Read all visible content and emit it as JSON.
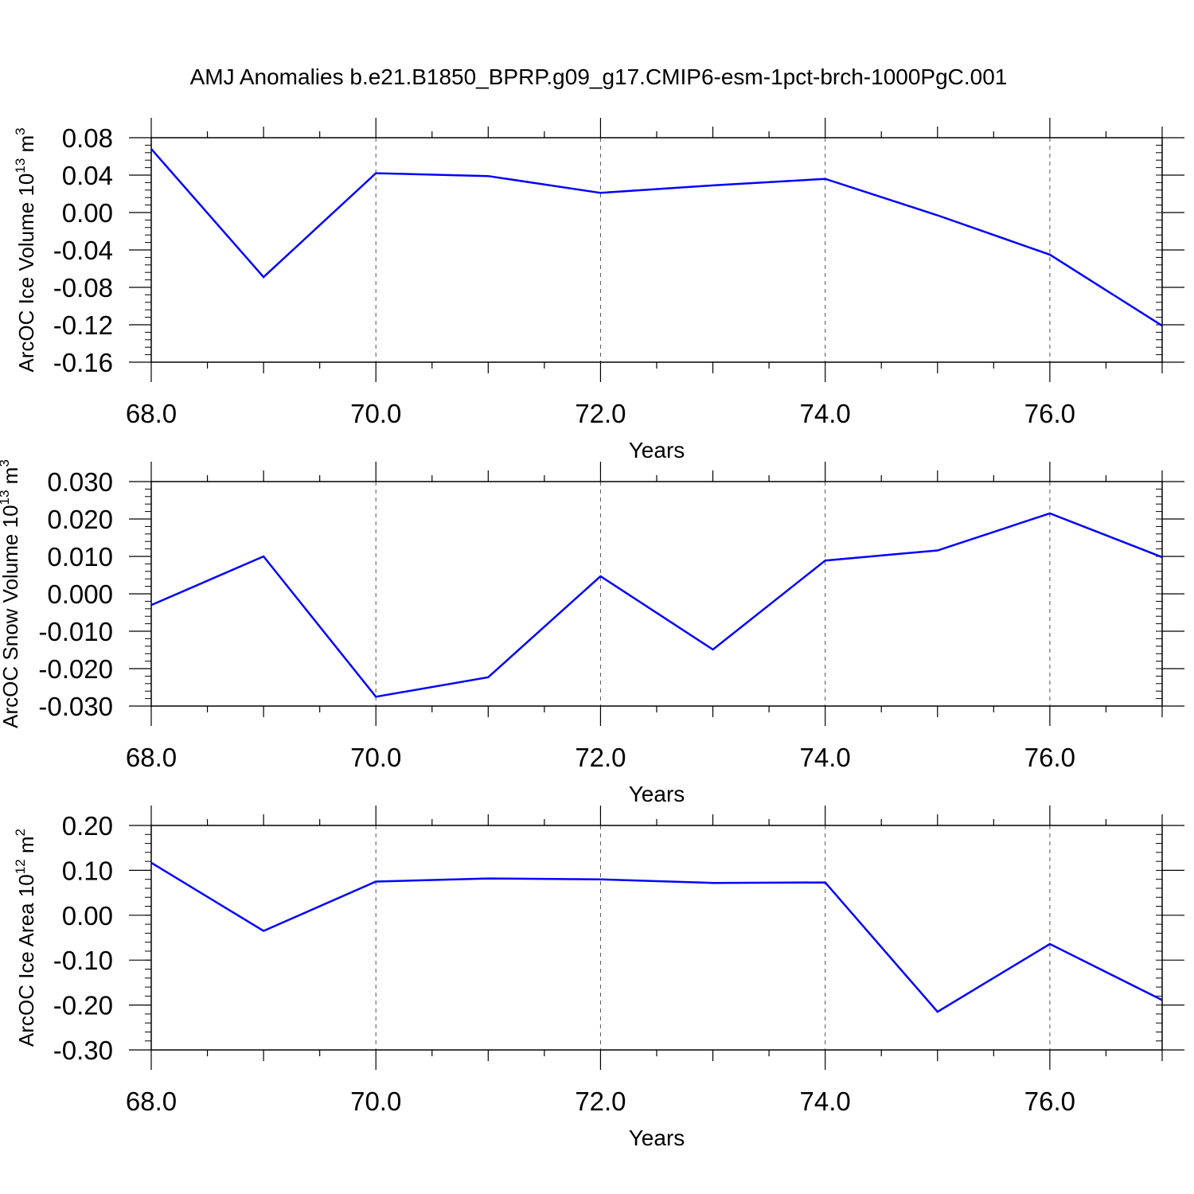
{
  "title": "AMJ Anomalies b.e21.B1850_BPRP.g09_g17.CMIP6-esm-1pct-brch-1000PgC.001",
  "line_color": "#0000ff",
  "chart_data": [
    {
      "type": "line",
      "xlabel": "Years",
      "ylabel": {
        "text": "ArcOC Ice Volume 10",
        "exp": "13",
        "unit": "m",
        "unit_exp": "3"
      },
      "xlim": [
        68,
        77
      ],
      "ylim": [
        -0.16,
        0.08
      ],
      "x_ticks": [
        68,
        70,
        72,
        74,
        76
      ],
      "x_tick_labels": [
        "68.0",
        "70.0",
        "72.0",
        "74.0",
        "76.0"
      ],
      "y_ticks": [
        -0.16,
        -0.12,
        -0.08,
        -0.04,
        0.0,
        0.04,
        0.08
      ],
      "y_tick_labels": [
        "-0.16",
        "-0.12",
        "-0.08",
        "-0.04",
        "0.00",
        "0.04",
        "0.08"
      ],
      "y_minor_step": 0.008,
      "x": [
        68,
        69,
        70,
        71,
        72,
        73,
        74,
        75,
        76,
        77
      ],
      "series": [
        {
          "values": [
            0.068,
            -0.069,
            0.042,
            0.039,
            0.021,
            0.029,
            0.036,
            -0.003,
            -0.045,
            -0.121
          ]
        }
      ]
    },
    {
      "type": "line",
      "xlabel": "Years",
      "ylabel": {
        "text": "ArcOC Snow Volume 10",
        "exp": "13",
        "unit": "m",
        "unit_exp": "3"
      },
      "xlim": [
        68,
        77
      ],
      "ylim": [
        -0.03,
        0.03
      ],
      "x_ticks": [
        68,
        70,
        72,
        74,
        76
      ],
      "x_tick_labels": [
        "68.0",
        "70.0",
        "72.0",
        "74.0",
        "76.0"
      ],
      "y_ticks": [
        -0.03,
        -0.02,
        -0.01,
        0.0,
        0.01,
        0.02,
        0.03
      ],
      "y_tick_labels": [
        "-0.030",
        "-0.020",
        "-0.010",
        "0.000",
        "0.010",
        "0.020",
        "0.030"
      ],
      "y_minor_step": 0.002,
      "x": [
        68,
        69,
        70,
        71,
        72,
        73,
        74,
        75,
        76,
        77
      ],
      "series": [
        {
          "values": [
            -0.003,
            0.01,
            -0.0275,
            -0.0223,
            0.0047,
            -0.0149,
            0.0089,
            0.0116,
            0.0215,
            0.0098
          ]
        }
      ]
    },
    {
      "type": "line",
      "xlabel": "Years",
      "ylabel": {
        "text": "ArcOC Ice Area 10",
        "exp": "12",
        "unit": "m",
        "unit_exp": "2"
      },
      "xlim": [
        68,
        77
      ],
      "ylim": [
        -0.3,
        0.2
      ],
      "x_ticks": [
        68,
        70,
        72,
        74,
        76
      ],
      "x_tick_labels": [
        "68.0",
        "70.0",
        "72.0",
        "74.0",
        "76.0"
      ],
      "y_ticks": [
        -0.3,
        -0.2,
        -0.1,
        0.0,
        0.1,
        0.2
      ],
      "y_tick_labels": [
        "-0.30",
        "-0.20",
        "-0.10",
        "0.00",
        "0.10",
        "0.20"
      ],
      "y_minor_step": 0.02,
      "x": [
        68,
        69,
        70,
        71,
        72,
        73,
        74,
        75,
        76,
        77
      ],
      "series": [
        {
          "values": [
            0.117,
            -0.035,
            0.075,
            0.082,
            0.08,
            0.072,
            0.073,
            -0.215,
            -0.064,
            -0.189
          ]
        }
      ]
    }
  ]
}
